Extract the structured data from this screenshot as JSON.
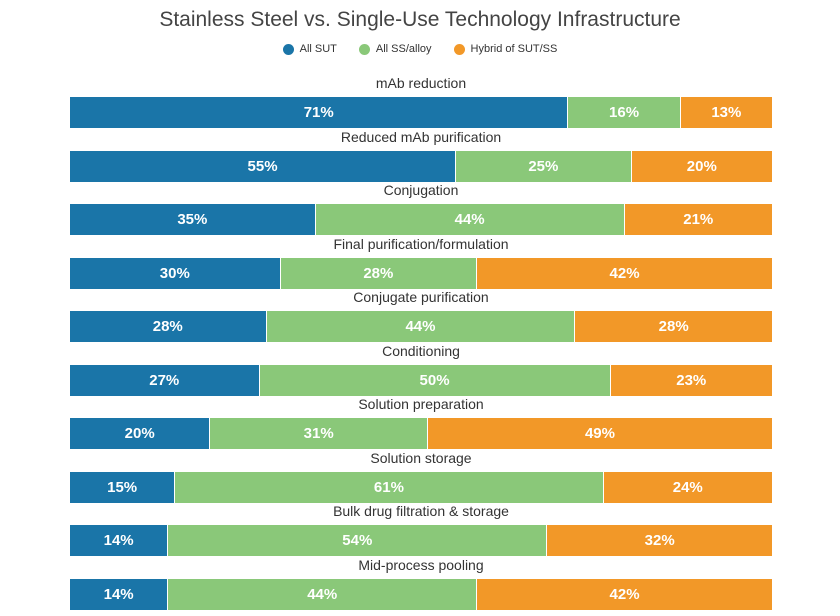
{
  "chart_data": {
    "type": "bar",
    "orientation": "horizontal",
    "stacked": true,
    "title": "Stainless Steel vs. Single-Use Technology Infrastructure",
    "legend_position": "top",
    "categories": [
      "mAb reduction",
      "Reduced mAb purification",
      "Conjugation",
      "Final purification/formulation",
      "Conjugate purification",
      "Conditioning",
      "Solution preparation",
      "Solution storage",
      "Bulk drug filtration & storage",
      "Mid-process pooling"
    ],
    "series": [
      {
        "name": "All SUT",
        "color": "#1a75a8",
        "values": [
          71,
          55,
          35,
          30,
          28,
          27,
          20,
          15,
          14,
          14
        ]
      },
      {
        "name": "All SS/alloy",
        "color": "#8ac879",
        "values": [
          16,
          25,
          44,
          28,
          44,
          50,
          31,
          61,
          54,
          44
        ]
      },
      {
        "name": "Hybrid of SUT/SS",
        "color": "#f29828",
        "values": [
          13,
          20,
          21,
          42,
          28,
          23,
          49,
          24,
          32,
          42
        ]
      }
    ],
    "unit": "%"
  }
}
